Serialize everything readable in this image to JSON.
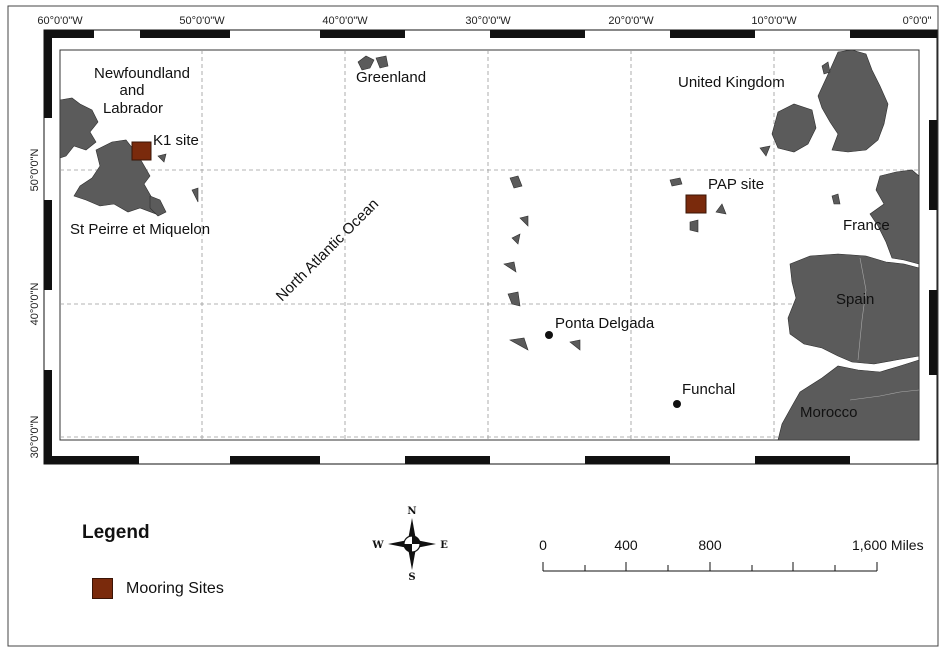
{
  "map": {
    "top_ticks": [
      "60°0'0\"W",
      "50°0'0\"W",
      "40°0'0\"W",
      "30°0'0\"W",
      "20°0'0\"W",
      "10°0'0\"W",
      "0°0'0\""
    ],
    "left_ticks": [
      "50°0'0\"N",
      "40°0'0\"N",
      "30°0'0\"N"
    ],
    "labels": {
      "newfoundland_1": "Newfoundland",
      "newfoundland_2": "and",
      "newfoundland_3": "Labrador",
      "k1_site": "K1 site",
      "st_pierre": "St Peirre et Miquelon",
      "greenland": "Greenland",
      "ocean": "North Atlantic Ocean",
      "united_kingdom": "United Kingdom",
      "pap_site": "PAP site",
      "france": "France",
      "spain": "Spain",
      "ponta_delgada": "Ponta Delgada",
      "funchal": "Funchal",
      "morocco": "Morocco"
    },
    "colors": {
      "land": "#5b5b5b",
      "mooring": "#7a2a0c",
      "grid": "#9a9a9a"
    }
  },
  "legend": {
    "title": "Legend",
    "items": [
      {
        "label": "Mooring Sites",
        "color": "#7a2a0c"
      }
    ]
  },
  "compass": {
    "n": "N",
    "s": "S",
    "e": "E",
    "w": "W"
  },
  "scale_bar": {
    "labels": [
      "0",
      "400",
      "800",
      "1,600 Miles"
    ]
  }
}
